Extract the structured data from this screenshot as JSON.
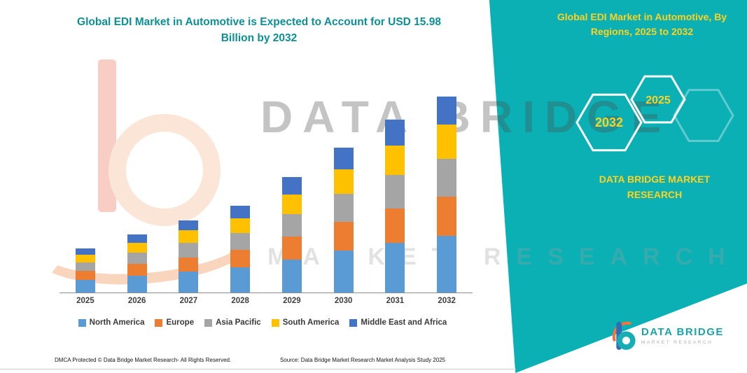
{
  "title_lines": [
    "Global EDI Market in Automotive is Expected to Account for USD 15.98",
    "Billion by 2032"
  ],
  "watermark": {
    "primary": "DATA BRIDGE",
    "secondary": "MARKET RESEARCH"
  },
  "side_panel": {
    "title_lines": [
      "Global EDI Market in Automotive, By",
      "Regions, 2025 to 2032"
    ],
    "hexagons": [
      "2032",
      "2025"
    ],
    "brand_lines": [
      "DATA BRIDGE MARKET",
      "RESEARCH"
    ],
    "colors": {
      "background": "#0ab0b4",
      "text": "#ffd21f",
      "hex_stroke": "#ffffff"
    }
  },
  "chart_data": {
    "type": "bar",
    "stacked": true,
    "title": "Global EDI Market in Automotive is Expected to Account for USD 15.98 Billion by 2032",
    "unit": "USD Billion",
    "categories": [
      "2025",
      "2026",
      "2027",
      "2028",
      "2029",
      "2030",
      "2031",
      "2032"
    ],
    "series": [
      {
        "name": "North America",
        "color": "#5B9BD5",
        "values": [
          1.05,
          1.38,
          1.7,
          2.05,
          2.7,
          3.4,
          4.05,
          4.6
        ]
      },
      {
        "name": "Europe",
        "color": "#ED7D31",
        "values": [
          0.72,
          0.95,
          1.18,
          1.42,
          1.88,
          2.35,
          2.8,
          3.2
        ]
      },
      {
        "name": "Asia Pacific",
        "color": "#A5A5A5",
        "values": [
          0.7,
          0.92,
          1.15,
          1.38,
          1.82,
          2.28,
          2.72,
          3.1
        ]
      },
      {
        "name": "South America",
        "color": "#FFC000",
        "values": [
          0.62,
          0.82,
          1.02,
          1.22,
          1.62,
          2.02,
          2.42,
          2.78
        ]
      },
      {
        "name": "Middle East and Africa",
        "color": "#4472C4",
        "values": [
          0.51,
          0.68,
          0.85,
          1.03,
          1.38,
          1.75,
          2.11,
          2.3
        ]
      }
    ],
    "ylim": [
      0,
      16
    ],
    "grid": false,
    "legend_position": "bottom",
    "total_2032": 15.98
  },
  "footer": {
    "dmca": "DMCA Protected © Data Bridge Market Research-  All Rights Reserved.",
    "source": "Source: Data Bridge Market Research  Market Analysis Study 2025"
  },
  "logo": {
    "name": "DATA BRIDGE",
    "subtitle": "MARKET RESEARCH"
  },
  "colors": {
    "title_teal": "#0d8f96"
  }
}
